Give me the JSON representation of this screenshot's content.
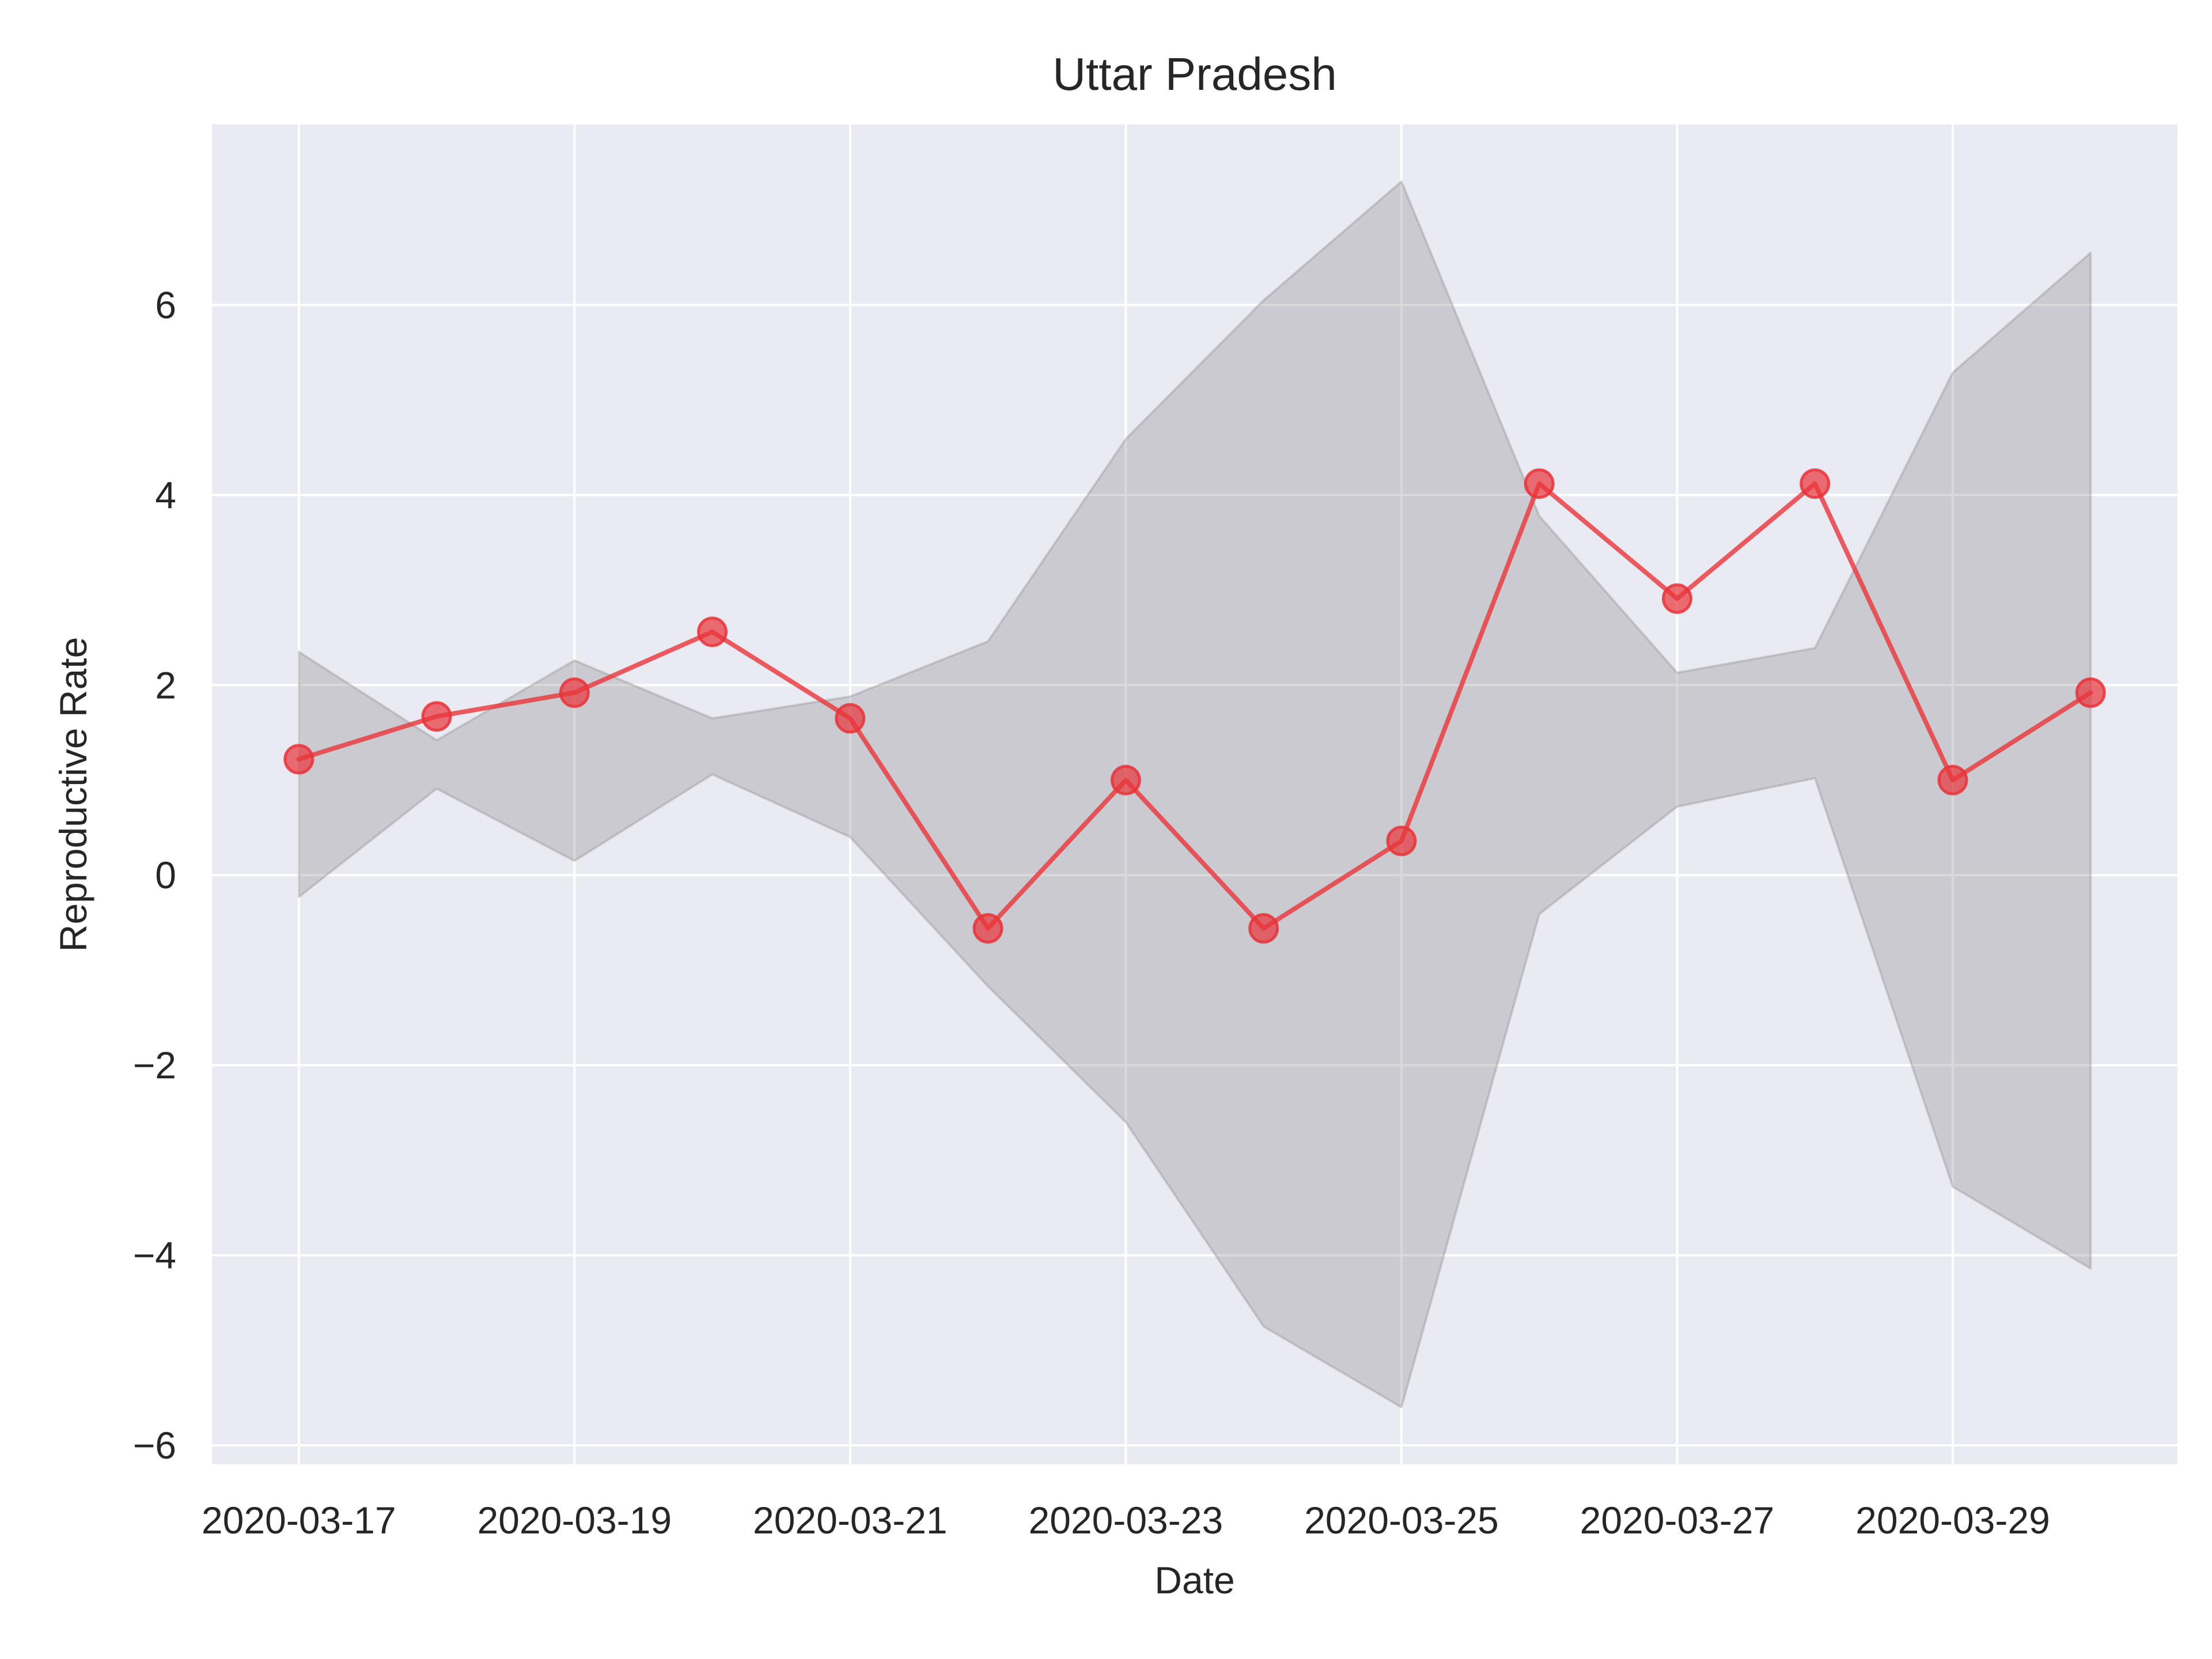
{
  "chart_data": {
    "type": "line",
    "title": "Uttar Pradesh",
    "xlabel": "Date",
    "ylabel": "Reproductive Rate",
    "x": [
      "2020-03-17",
      "2020-03-18",
      "2020-03-19",
      "2020-03-20",
      "2020-03-21",
      "2020-03-22",
      "2020-03-23",
      "2020-03-24",
      "2020-03-25",
      "2020-03-26",
      "2020-03-27",
      "2020-03-28",
      "2020-03-29",
      "2020-03-30"
    ],
    "xticks": [
      "2020-03-17",
      "2020-03-19",
      "2020-03-21",
      "2020-03-23",
      "2020-03-25",
      "2020-03-27",
      "2020-03-29"
    ],
    "xlim": [
      "2020-03-16.37",
      "2020-03-30.63"
    ],
    "yticks": [
      6,
      4,
      2,
      0,
      -2,
      -4,
      -6
    ],
    "ytick_labels": [
      "6",
      "4",
      "2",
      "0",
      "−2",
      "−4",
      "−6"
    ],
    "ylim": [
      -6.2,
      7.9
    ],
    "grid": true,
    "series": [
      {
        "values": [
          1.22,
          1.67,
          1.92,
          2.56,
          1.65,
          -0.56,
          1.0,
          -0.56,
          0.36,
          4.12,
          2.91,
          4.12,
          1.0,
          1.92
        ],
        "color": "#e8343a"
      }
    ],
    "band": {
      "upper": [
        2.35,
        1.42,
        2.26,
        1.65,
        1.88,
        2.46,
        4.59,
        6.05,
        7.3,
        3.78,
        2.13,
        2.39,
        5.29,
        6.55
      ],
      "lower": [
        -0.23,
        0.91,
        0.15,
        1.06,
        0.4,
        -1.17,
        -2.6,
        -4.75,
        -5.6,
        -0.41,
        0.72,
        1.02,
        -3.28,
        -4.14
      ],
      "color": "#808080"
    }
  }
}
